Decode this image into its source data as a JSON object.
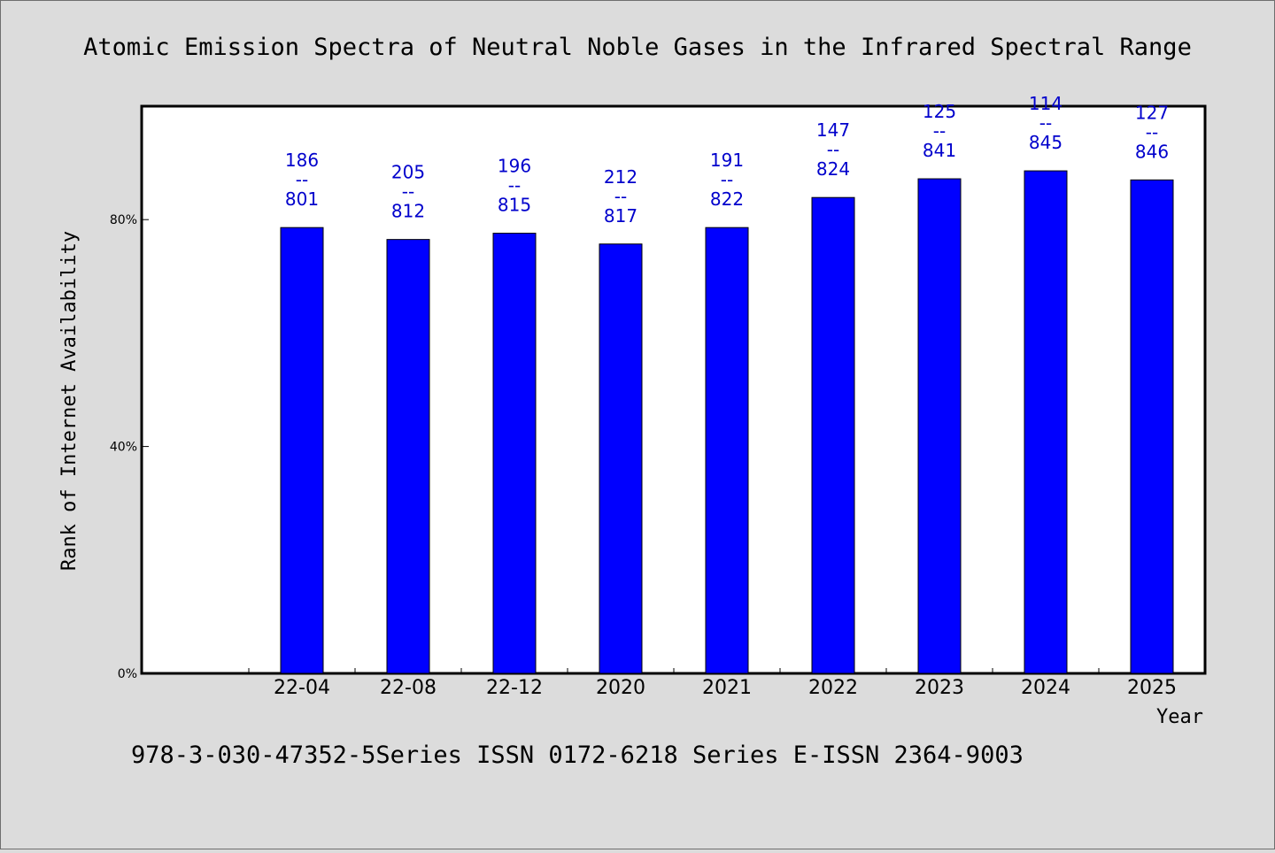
{
  "title": "Atomic Emission Spectra of Neutral Noble Gases in the Infrared Spectral Range",
  "footer": "978-3-030-47352-5Series ISSN 0172-6218 Series E-ISSN 2364-9003",
  "chart_data": {
    "type": "bar",
    "title": "Atomic Emission Spectra of Neutral Noble Gases in the Infrared Spectral Range",
    "xlabel": "Year",
    "ylabel": "Rank of Internet Availability",
    "categories": [
      "22-04",
      "22-08",
      "22-12",
      "2020",
      "2021",
      "2022",
      "2023",
      "2024",
      "2025"
    ],
    "values": [
      0.786,
      0.765,
      0.776,
      0.757,
      0.786,
      0.839,
      0.872,
      0.886,
      0.87
    ],
    "data_labels": [
      [
        "186",
        "--",
        "801"
      ],
      [
        "205",
        "--",
        "812"
      ],
      [
        "196",
        "--",
        "815"
      ],
      [
        "212",
        "--",
        "817"
      ],
      [
        "191",
        "--",
        "822"
      ],
      [
        "147",
        "--",
        "824"
      ],
      [
        "125",
        "--",
        "841"
      ],
      [
        "114",
        "--",
        "845"
      ],
      [
        "127",
        "--",
        "846"
      ]
    ],
    "yticks": [
      {
        "value": 0,
        "label": "0%"
      },
      {
        "value": 0.4,
        "label": "40%"
      },
      {
        "value": 0.8,
        "label": "80%"
      }
    ],
    "ylim": [
      0,
      1.0
    ],
    "grid": false,
    "legend": "none",
    "colors": {
      "bar": "#0000ff",
      "bar_edge": "#000000",
      "data_label": "#0000cc",
      "plot_background": "#ffffff",
      "figure_background": "#dcdcdc"
    }
  }
}
